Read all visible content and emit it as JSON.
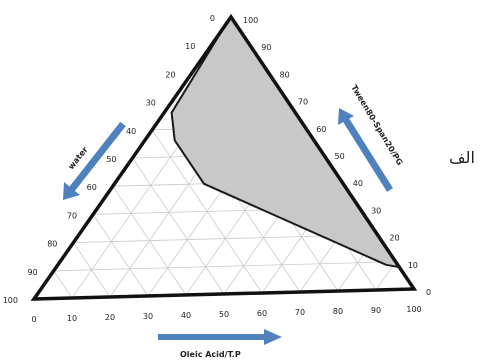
{
  "chart_data": {
    "type": "ternary",
    "axes": {
      "bottom": {
        "label": "Oleic Acid/T.P",
        "ticks": [
          "0",
          "10",
          "20",
          "30",
          "40",
          "50",
          "60",
          "70",
          "80",
          "90",
          "100"
        ]
      },
      "left": {
        "label": "water",
        "ticks": [
          "0",
          "10",
          "20",
          "30",
          "40",
          "50",
          "60",
          "70",
          "80",
          "90",
          "100"
        ]
      },
      "right": {
        "label": "Tween80-Span20/PG",
        "ticks": [
          "0",
          "10",
          "20",
          "30",
          "40",
          "50",
          "60",
          "70",
          "80",
          "90",
          "100"
        ]
      }
    },
    "grid": true,
    "grid_step": 10,
    "region": {
      "name": "",
      "fill": "#c8c8c8",
      "points": [
        {
          "oil": 0,
          "water": 3,
          "surf": 97
        },
        {
          "oil": 2,
          "water": 32,
          "surf": 66
        },
        {
          "oil": 8,
          "water": 36,
          "surf": 56
        },
        {
          "oil": 24,
          "water": 36,
          "surf": 40
        },
        {
          "oil": 88,
          "water": 3,
          "surf": 9
        },
        {
          "oil": 92,
          "water": 0,
          "surf": 8
        },
        {
          "oil": 0,
          "water": 0,
          "surf": 100
        }
      ]
    },
    "arrows_color": "#4f81bd"
  },
  "side_text": "الف"
}
